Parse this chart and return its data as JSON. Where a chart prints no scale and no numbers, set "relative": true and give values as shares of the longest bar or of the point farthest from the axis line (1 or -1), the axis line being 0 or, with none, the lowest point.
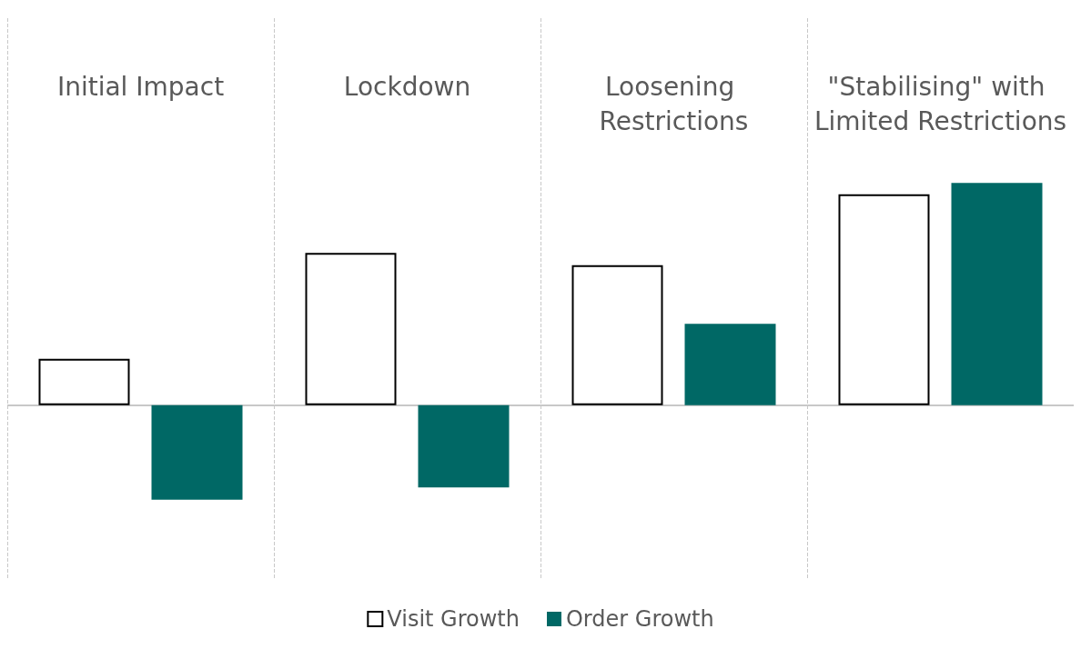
{
  "chart_data": {
    "type": "bar",
    "relative": true,
    "categories": [
      "Initial Impact",
      "Lockdown",
      "Loosening Restrictions",
      "\"Stabilising\" with Limited Restrictions"
    ],
    "series": [
      {
        "name": "Visit Growth",
        "color": "#ffffff",
        "values": [
          0.209,
          0.685,
          0.63,
          0.949
        ]
      },
      {
        "name": "Order Growth",
        "color": "#006865",
        "values": [
          -0.426,
          -0.37,
          0.366,
          1
        ]
      }
    ],
    "grid": "x",
    "legend": "bottom"
  }
}
